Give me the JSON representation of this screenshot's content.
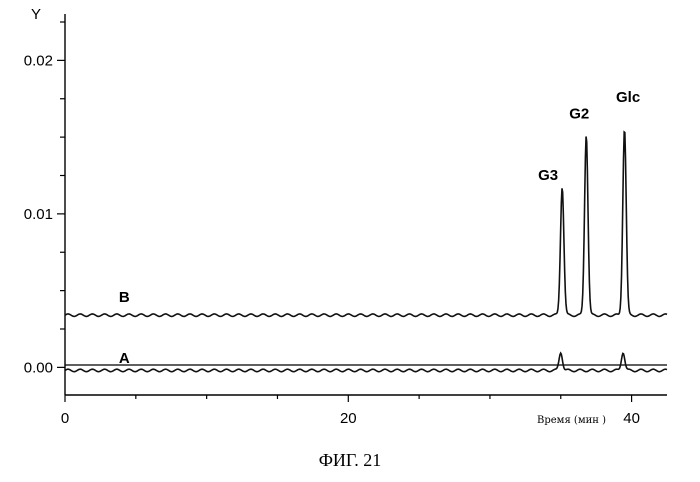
{
  "chart_data": {
    "type": "line",
    "ylabel": "Y",
    "xlabel": "Время (мин )",
    "caption": "ФИГ. 21",
    "xlim": [
      0,
      42.5
    ],
    "ylim": [
      -0.0018,
      0.0225
    ],
    "x_ticks": [
      0,
      20,
      40
    ],
    "x_tick_labels": [
      "0",
      "20",
      "40"
    ],
    "x_minor_ticks": [
      5,
      10,
      15,
      25,
      30,
      35
    ],
    "y_ticks": [
      0.0,
      0.01,
      0.02
    ],
    "y_tick_labels": [
      "0.00",
      "0.01",
      "0.02"
    ],
    "y_minor_step": 0.0025,
    "baseline_y": -0.0018,
    "grid": false,
    "series": [
      {
        "name": "A",
        "label_x": 3.8,
        "label_y": 0.0006,
        "offset": -0.0002,
        "peaks": [
          {
            "x": 35.0,
            "height": 0.0012
          },
          {
            "x": 39.4,
            "height": 0.0012
          }
        ]
      },
      {
        "name": "B",
        "label_x": 3.8,
        "label_y": 0.0046,
        "offset": 0.0034,
        "peaks": [
          {
            "x": 35.1,
            "height": 0.0084
          },
          {
            "x": 36.8,
            "height": 0.0118
          },
          {
            "x": 39.5,
            "height": 0.0122
          }
        ]
      }
    ],
    "peak_labels": [
      {
        "text": "G3",
        "x": 33.4,
        "y": 0.0122
      },
      {
        "text": "G2",
        "x": 35.6,
        "y": 0.0162
      },
      {
        "text": "Glc",
        "x": 38.9,
        "y": 0.0173
      }
    ]
  }
}
